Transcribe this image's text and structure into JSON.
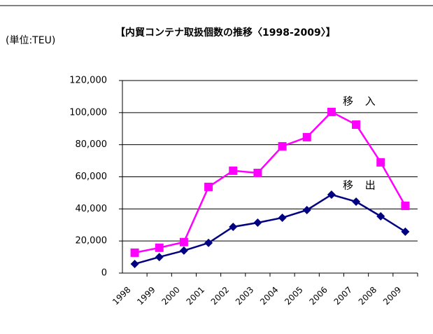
{
  "chart_data": {
    "type": "line",
    "title": "【内貿コンテナ取扱個数の推移〈1998-2009〉】",
    "unit_label": "(単位:TEU)",
    "categories": [
      "1998",
      "1999",
      "2000",
      "2001",
      "2002",
      "2003",
      "2004",
      "2005",
      "2006",
      "2007",
      "2008",
      "2009"
    ],
    "series": [
      {
        "name": "移 入",
        "color": "#ff00ff",
        "marker": "square",
        "values": [
          12700,
          15800,
          19300,
          53700,
          63800,
          62400,
          79000,
          84700,
          100400,
          92500,
          69000,
          41900
        ]
      },
      {
        "name": "移 出",
        "color": "#000080",
        "marker": "diamond",
        "values": [
          5700,
          10000,
          14000,
          18800,
          28800,
          31400,
          34500,
          39300,
          48900,
          44500,
          35400,
          25800
        ]
      }
    ],
    "ylim": [
      0,
      120000
    ],
    "yticks": [
      0,
      {
        "value": 20000,
        "label": "20,000"
      },
      {
        "value": 40000,
        "label": "40,000"
      },
      {
        "value": 60000,
        "label": "60,000"
      },
      {
        "value": 80000,
        "label": "80,000"
      },
      {
        "value": 100000,
        "label": "100,000"
      },
      {
        "value": 120000,
        "label": "120,000"
      }
    ],
    "grid": true
  }
}
